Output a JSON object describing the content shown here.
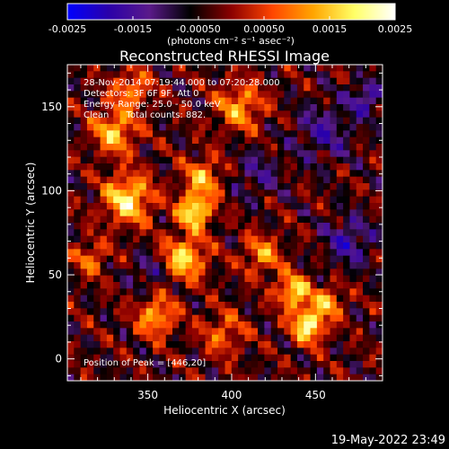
{
  "chart_data": {
    "type": "heatmap",
    "title": "Reconstructed RHESSI Image",
    "colorbar": {
      "min": -0.0025,
      "max": 0.0025,
      "tick_labels": [
        "-0.0025",
        "-0.0015",
        "-0.00050",
        "0.00050",
        "0.0015",
        "0.0025"
      ],
      "tick_values": [
        -0.0025,
        -0.0015,
        -0.0005,
        0.0005,
        0.0015,
        0.0025
      ],
      "units_label": "(photons cm⁻² s⁻¹ asec⁻²)",
      "color_stops": [
        "#0000ff",
        "#2a00aa",
        "#5a1a8a",
        "#000000",
        "#8b0000",
        "#ff4500",
        "#ffa500",
        "#ffff66",
        "#ffffff"
      ]
    },
    "xlabel": "Heliocentric X (arcsec)",
    "ylabel": "Heliocentric Y (arcsec)",
    "xlim": [
      302,
      490
    ],
    "ylim": [
      -13,
      175
    ],
    "x_ticks": [
      350,
      400,
      450
    ],
    "x_tick_labels": [
      "350",
      "400",
      "450"
    ],
    "y_ticks": [
      0,
      50,
      100,
      150
    ],
    "y_tick_labels": [
      "0",
      "50",
      "100",
      "150"
    ],
    "grid": false,
    "annotations": {
      "time": "28-Nov-2014 07:19:44.000 to 07:20:28.000",
      "detectors": "Detectors: 3F 6F 9F, Att 0",
      "energy": "Energy Range: 25.0 - 50.0 keV",
      "clean": "Clean      Total counts: 882.",
      "peak": "Position of Peak = [446,20]"
    },
    "peak_position": [
      446,
      20
    ],
    "grid_size": [
      48,
      48
    ],
    "hot_spots": [
      {
        "x": 338,
        "y": 95,
        "amp": 0.0022,
        "sigma": 10
      },
      {
        "x": 330,
        "y": 135,
        "amp": 0.0018,
        "sigma": 9
      },
      {
        "x": 355,
        "y": 25,
        "amp": 0.0017,
        "sigma": 8
      },
      {
        "x": 372,
        "y": 60,
        "amp": 0.002,
        "sigma": 9
      },
      {
        "x": 378,
        "y": 88,
        "amp": 0.0024,
        "sigma": 7
      },
      {
        "x": 383,
        "y": 108,
        "amp": 0.0016,
        "sigma": 8
      },
      {
        "x": 405,
        "y": 150,
        "amp": 0.0015,
        "sigma": 10
      },
      {
        "x": 418,
        "y": 62,
        "amp": 0.0014,
        "sigma": 8
      },
      {
        "x": 446,
        "y": 20,
        "amp": 0.0025,
        "sigma": 7
      },
      {
        "x": 437,
        "y": 40,
        "amp": 0.0021,
        "sigma": 7
      },
      {
        "x": 458,
        "y": 34,
        "amp": 0.0016,
        "sigma": 6
      },
      {
        "x": 340,
        "y": 160,
        "amp": 0.0014,
        "sigma": 8
      },
      {
        "x": 316,
        "y": 60,
        "amp": 0.0012,
        "sigma": 7
      },
      {
        "x": 395,
        "y": 15,
        "amp": 0.0011,
        "sigma": 9
      }
    ],
    "cold_spots": [
      {
        "x": 470,
        "y": 70,
        "amp": -0.0012,
        "sigma": 10
      },
      {
        "x": 455,
        "y": 135,
        "amp": -0.001,
        "sigma": 12
      },
      {
        "x": 350,
        "y": 52,
        "amp": -0.0009,
        "sigma": 7
      },
      {
        "x": 415,
        "y": 110,
        "amp": -0.0008,
        "sigma": 10
      },
      {
        "x": 480,
        "y": 155,
        "amp": -0.0013,
        "sigma": 7
      }
    ]
  },
  "footer": {
    "timestamp": "19-May-2022 23:49"
  }
}
